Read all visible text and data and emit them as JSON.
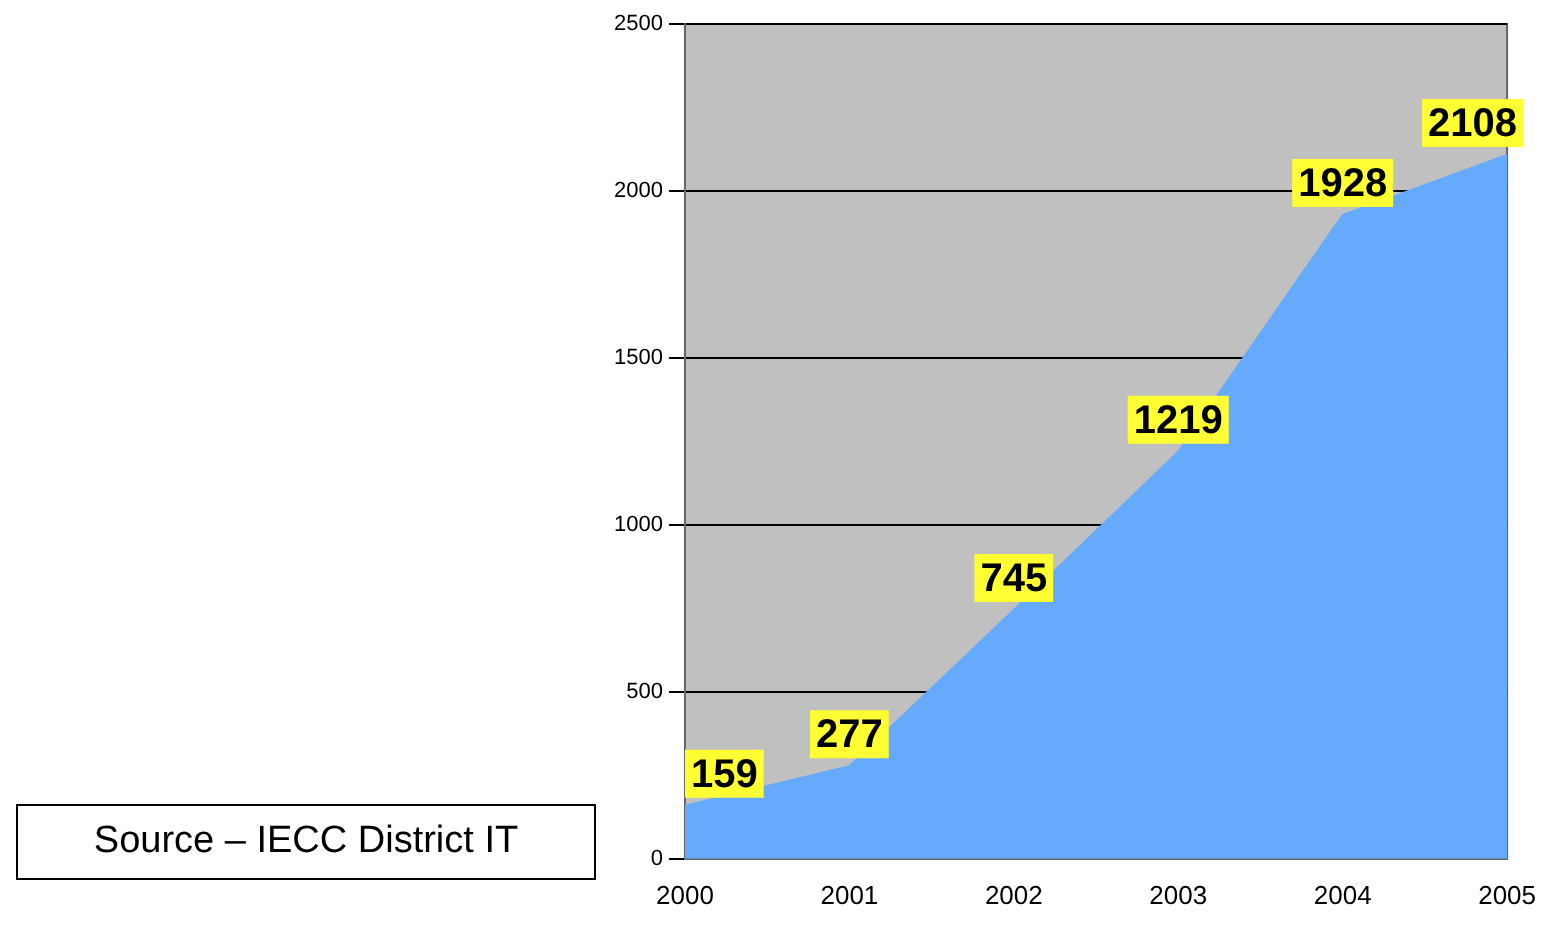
{
  "chart_data": {
    "type": "area",
    "categories": [
      "2000",
      "2001",
      "2002",
      "2003",
      "2004",
      "2005"
    ],
    "values": [
      159,
      277,
      745,
      1219,
      1928,
      2108
    ],
    "color": "#66aaff",
    "ylim": [
      0,
      2500
    ],
    "yticks": [
      0,
      500,
      1000,
      1500,
      2000,
      2500
    ],
    "grid": "y",
    "legend": false,
    "data_labels": true,
    "annotations": [
      "Source – IECC District IT"
    ]
  }
}
